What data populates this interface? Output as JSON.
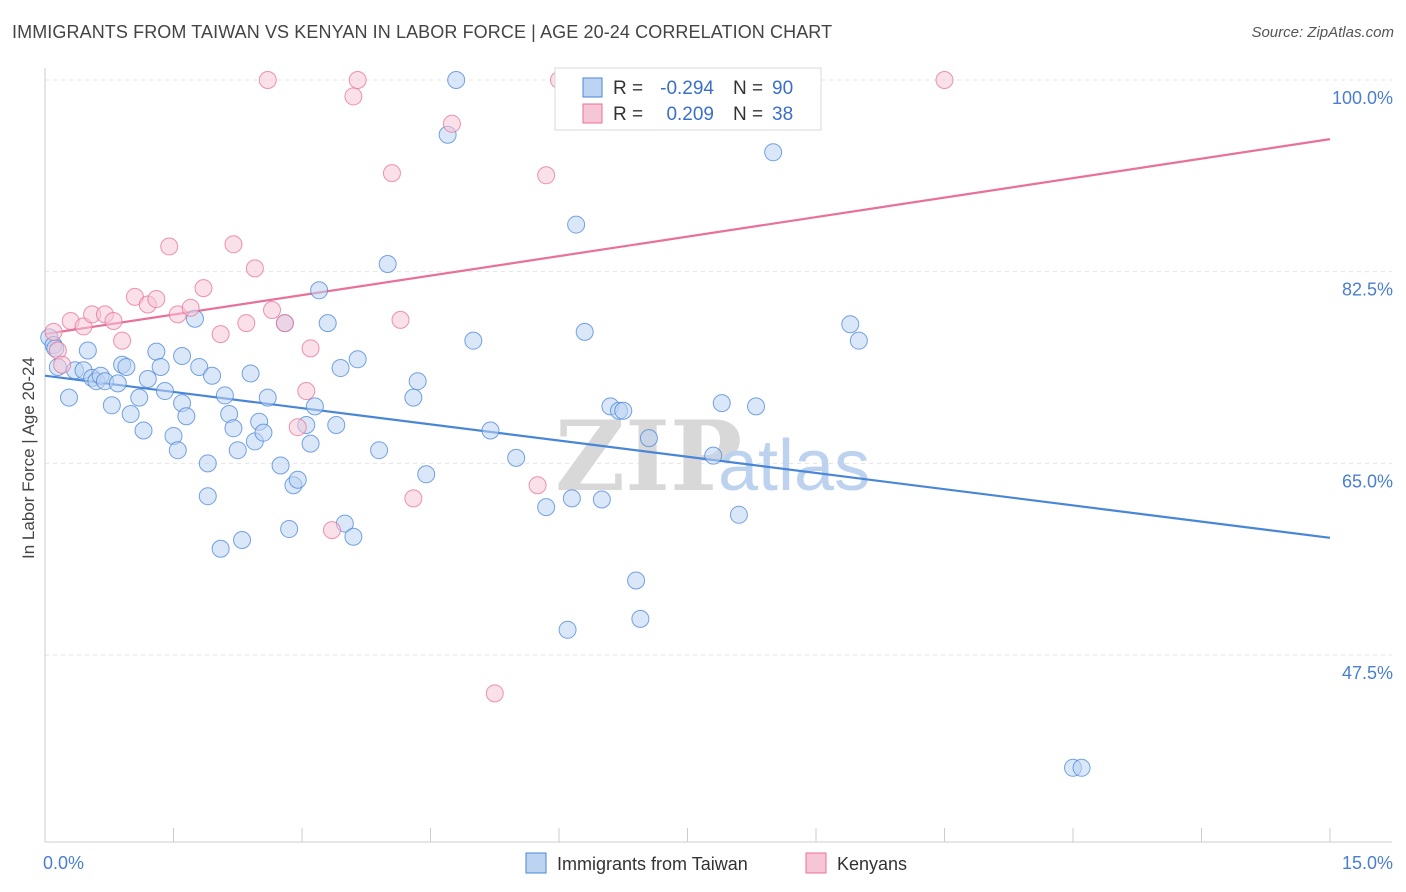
{
  "header": {
    "title": "IMMIGRANTS FROM TAIWAN VS KENYAN IN LABOR FORCE | AGE 20-24 CORRELATION CHART",
    "source": "Source: ZipAtlas.com"
  },
  "watermark": {
    "part1": "ZIP",
    "part2": "atlas"
  },
  "colors": {
    "blue": "#4a86d8",
    "blue_fill": "#bcd4f2",
    "pink": "#e8709a",
    "pink_fill": "#f6c6d6",
    "grid": "#e4e4e4",
    "tick_text": "#4a7fd0"
  },
  "chart_data": {
    "type": "scatter",
    "title": "IMMIGRANTS FROM TAIWAN VS KENYAN IN LABOR FORCE | AGE 20-24 CORRELATION CHART",
    "xlabel": "",
    "ylabel": "In Labor Force | Age 20-24",
    "xlim": [
      0,
      15
    ],
    "ylim": [
      31,
      102
    ],
    "x_tick_labels": [
      "0.0%",
      "15.0%"
    ],
    "y_ticks": [
      47.5,
      65.0,
      82.5,
      100.0
    ],
    "y_tick_labels": [
      "47.5%",
      "65.0%",
      "82.5%",
      "100.0%"
    ],
    "grid": true,
    "legend_position": "top-center",
    "legend": [
      {
        "r_label": "R =",
        "r_value": "-0.294",
        "n_label": "N =",
        "n_value": "90"
      },
      {
        "r_label": "R =",
        "r_value": "0.209",
        "n_label": "N =",
        "n_value": "38"
      }
    ],
    "series": [
      {
        "name": "Immigrants from Taiwan",
        "color": "#4a86d8",
        "trend": {
          "x": [
            0,
            15
          ],
          "y": [
            73.0,
            58.2
          ]
        },
        "points": [
          [
            0.05,
            76.5
          ],
          [
            0.1,
            75.8
          ],
          [
            0.12,
            75.5
          ],
          [
            0.15,
            73.8
          ],
          [
            0.28,
            71.0
          ],
          [
            0.35,
            73.5
          ],
          [
            0.45,
            73.5
          ],
          [
            0.5,
            75.3
          ],
          [
            0.55,
            72.8
          ],
          [
            0.6,
            72.5
          ],
          [
            0.65,
            73.0
          ],
          [
            0.7,
            72.5
          ],
          [
            0.78,
            70.3
          ],
          [
            0.85,
            72.3
          ],
          [
            0.9,
            74.0
          ],
          [
            0.95,
            73.8
          ],
          [
            1.0,
            69.5
          ],
          [
            1.1,
            71.0
          ],
          [
            1.15,
            68.0
          ],
          [
            1.2,
            72.7
          ],
          [
            1.3,
            75.2
          ],
          [
            1.35,
            73.8
          ],
          [
            1.4,
            71.6
          ],
          [
            1.5,
            67.5
          ],
          [
            1.55,
            66.2
          ],
          [
            1.6,
            70.5
          ],
          [
            1.6,
            74.8
          ],
          [
            1.65,
            69.3
          ],
          [
            1.75,
            78.2
          ],
          [
            1.8,
            73.8
          ],
          [
            1.9,
            65.0
          ],
          [
            1.9,
            62.0
          ],
          [
            1.95,
            73.0
          ],
          [
            2.05,
            57.2
          ],
          [
            2.1,
            71.2
          ],
          [
            2.15,
            69.5
          ],
          [
            2.2,
            68.2
          ],
          [
            2.25,
            66.2
          ],
          [
            2.3,
            58.0
          ],
          [
            2.4,
            73.2
          ],
          [
            2.45,
            67.0
          ],
          [
            2.5,
            68.8
          ],
          [
            2.55,
            67.8
          ],
          [
            2.6,
            71.0
          ],
          [
            2.75,
            64.8
          ],
          [
            2.8,
            77.8
          ],
          [
            2.85,
            59.0
          ],
          [
            2.9,
            63.0
          ],
          [
            2.95,
            63.5
          ],
          [
            3.05,
            68.5
          ],
          [
            3.1,
            66.8
          ],
          [
            3.15,
            70.2
          ],
          [
            3.2,
            80.8
          ],
          [
            3.3,
            77.8
          ],
          [
            3.4,
            68.5
          ],
          [
            3.45,
            73.7
          ],
          [
            3.5,
            59.5
          ],
          [
            3.6,
            58.3
          ],
          [
            3.65,
            74.5
          ],
          [
            3.9,
            66.2
          ],
          [
            4.0,
            83.2
          ],
          [
            4.3,
            71.0
          ],
          [
            4.35,
            72.5
          ],
          [
            4.45,
            64.0
          ],
          [
            4.7,
            95.0
          ],
          [
            4.8,
            100.0
          ],
          [
            5.0,
            76.2
          ],
          [
            5.2,
            68.0
          ],
          [
            5.5,
            65.5
          ],
          [
            5.85,
            61.0
          ],
          [
            6.1,
            49.8
          ],
          [
            6.15,
            61.8
          ],
          [
            6.2,
            86.8
          ],
          [
            6.3,
            77.0
          ],
          [
            6.5,
            61.7
          ],
          [
            6.6,
            70.2
          ],
          [
            6.7,
            69.8
          ],
          [
            6.75,
            69.8
          ],
          [
            6.9,
            54.3
          ],
          [
            6.95,
            50.8
          ],
          [
            7.05,
            67.3
          ],
          [
            7.8,
            65.7
          ],
          [
            7.9,
            70.5
          ],
          [
            8.1,
            60.3
          ],
          [
            8.3,
            70.2
          ],
          [
            8.5,
            93.4
          ],
          [
            9.4,
            77.7
          ],
          [
            9.5,
            76.2
          ],
          [
            12.0,
            37.2
          ],
          [
            12.1,
            37.2
          ]
        ]
      },
      {
        "name": "Kenyans",
        "color": "#e8709a",
        "trend": {
          "x": [
            0,
            15
          ],
          "y": [
            76.8,
            94.6
          ]
        },
        "points": [
          [
            0.1,
            77.0
          ],
          [
            0.15,
            75.3
          ],
          [
            0.2,
            74.0
          ],
          [
            0.3,
            78.0
          ],
          [
            0.45,
            77.5
          ],
          [
            0.55,
            78.6
          ],
          [
            0.7,
            78.6
          ],
          [
            0.8,
            78.0
          ],
          [
            0.9,
            76.2
          ],
          [
            1.05,
            80.2
          ],
          [
            1.2,
            79.5
          ],
          [
            1.3,
            80.0
          ],
          [
            1.45,
            84.8
          ],
          [
            1.55,
            78.6
          ],
          [
            1.7,
            79.2
          ],
          [
            1.85,
            81.0
          ],
          [
            2.05,
            76.8
          ],
          [
            2.2,
            85.0
          ],
          [
            2.35,
            77.8
          ],
          [
            2.45,
            82.8
          ],
          [
            2.6,
            100.0
          ],
          [
            2.65,
            79.0
          ],
          [
            2.8,
            77.8
          ],
          [
            2.95,
            68.3
          ],
          [
            3.05,
            71.6
          ],
          [
            3.1,
            75.5
          ],
          [
            3.35,
            58.9
          ],
          [
            3.6,
            98.5
          ],
          [
            3.65,
            100.0
          ],
          [
            4.05,
            91.5
          ],
          [
            4.15,
            78.1
          ],
          [
            4.3,
            61.8
          ],
          [
            4.75,
            96.0
          ],
          [
            5.25,
            44.0
          ],
          [
            5.75,
            63.0
          ],
          [
            5.85,
            91.3
          ],
          [
            6.0,
            100.0
          ],
          [
            10.5,
            100.0
          ]
        ]
      }
    ]
  }
}
